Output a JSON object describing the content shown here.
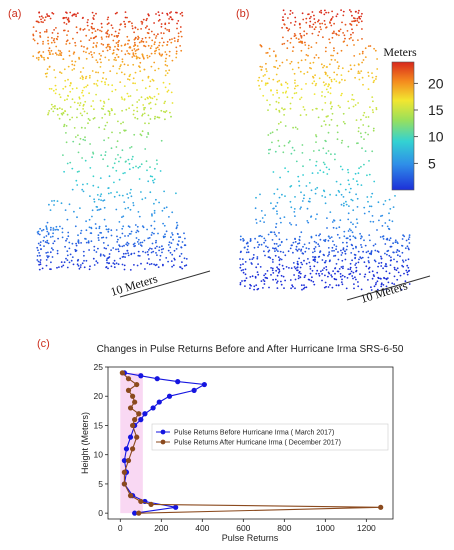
{
  "panels": {
    "a": "(a)",
    "b": "(b)",
    "c": "(c)"
  },
  "colorbar": {
    "title": "Meters",
    "ticks": [
      "20",
      "15",
      "10",
      "5"
    ],
    "tick_values": [
      20,
      15,
      10,
      5
    ],
    "range": [
      0,
      24
    ]
  },
  "scale_bars": {
    "a": "10 Meters",
    "b": "10 Meters"
  },
  "chart_data": {
    "type": "line",
    "title": "Changes in Pulse Returns Before and After Hurricane Irma SRS-6-50",
    "xlabel": "Pulse Returns",
    "ylabel": "Height (Meters)",
    "xlim": [
      -60,
      1330
    ],
    "ylim": [
      -1,
      25
    ],
    "xticks": [
      0,
      200,
      400,
      600,
      800,
      1000,
      1200
    ],
    "yticks": [
      0,
      5,
      10,
      15,
      20,
      25
    ],
    "legend_position": "center-right",
    "series": [
      {
        "name": "Pulse Returns Before Hurricane Irma ( March 2017)",
        "color": "#1515e0",
        "points": [
          [
            70,
            0
          ],
          [
            270,
            1
          ],
          [
            120,
            2
          ],
          [
            60,
            3
          ],
          [
            20,
            5
          ],
          [
            30,
            7
          ],
          [
            20,
            9
          ],
          [
            30,
            11
          ],
          [
            50,
            13
          ],
          [
            70,
            15
          ],
          [
            100,
            16
          ],
          [
            120,
            17
          ],
          [
            160,
            18
          ],
          [
            190,
            19
          ],
          [
            240,
            20
          ],
          [
            360,
            21
          ],
          [
            410,
            22
          ],
          [
            280,
            22.5
          ],
          [
            180,
            23
          ],
          [
            100,
            23.5
          ],
          [
            20,
            24
          ]
        ]
      },
      {
        "name": "Pulse Returns After Hurricane Irma ( December 2017)",
        "color": "#8b4a1e",
        "points": [
          [
            90,
            0
          ],
          [
            1270,
            1
          ],
          [
            150,
            1.5
          ],
          [
            100,
            2
          ],
          [
            50,
            3
          ],
          [
            20,
            5
          ],
          [
            20,
            7
          ],
          [
            40,
            9
          ],
          [
            60,
            11
          ],
          [
            80,
            13
          ],
          [
            60,
            15
          ],
          [
            70,
            16
          ],
          [
            90,
            17
          ],
          [
            50,
            18
          ],
          [
            70,
            19
          ],
          [
            60,
            20
          ],
          [
            40,
            21
          ],
          [
            80,
            22
          ],
          [
            40,
            23
          ],
          [
            10,
            24
          ]
        ]
      }
    ]
  }
}
